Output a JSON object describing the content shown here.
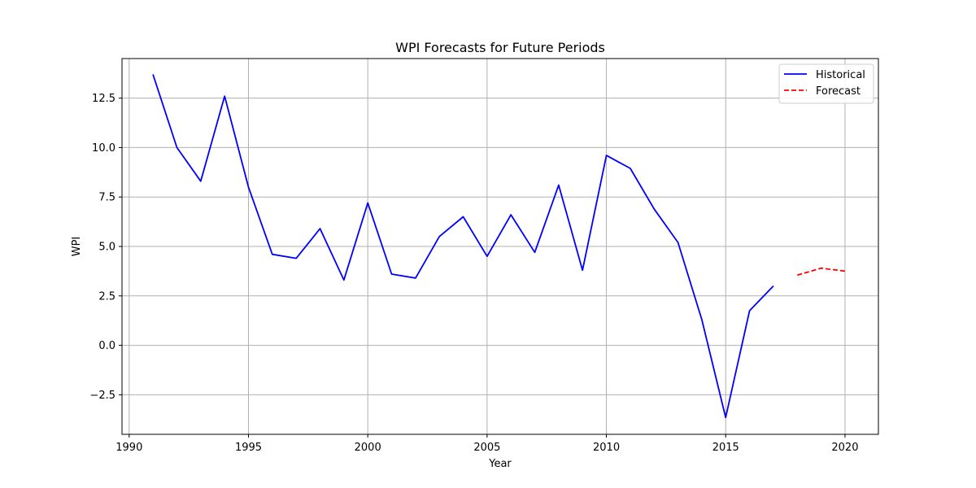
{
  "chart_data": {
    "type": "line",
    "title": "WPI Forecasts for Future Periods",
    "xlabel": "Year",
    "ylabel": "WPI",
    "xlim": [
      1989.7,
      2021.4
    ],
    "ylim": [
      -4.5,
      14.5
    ],
    "x_ticks": [
      1990,
      1995,
      2000,
      2005,
      2010,
      2015,
      2020
    ],
    "y_ticks": [
      -2.5,
      0.0,
      2.5,
      5.0,
      7.5,
      10.0,
      12.5
    ],
    "y_tick_labels": [
      "−2.5",
      "0.0",
      "2.5",
      "5.0",
      "7.5",
      "10.0",
      "12.5"
    ],
    "grid": true,
    "legend_position": "top-right",
    "series": [
      {
        "name": "Historical",
        "color": "#0000ff",
        "style": "solid",
        "x": [
          1991,
          1992,
          1993,
          1994,
          1995,
          1996,
          1997,
          1998,
          1999,
          2000,
          2001,
          2002,
          2003,
          2004,
          2005,
          2006,
          2007,
          2008,
          2009,
          2010,
          2011,
          2012,
          2013,
          2014,
          2015,
          2016,
          2017
        ],
        "values": [
          13.7,
          10.0,
          8.3,
          12.6,
          8.0,
          4.6,
          4.4,
          5.9,
          3.3,
          7.2,
          3.6,
          3.4,
          5.5,
          6.5,
          4.5,
          6.6,
          4.7,
          8.1,
          3.8,
          9.6,
          8.95,
          6.9,
          5.2,
          1.3,
          -3.65,
          1.75,
          3.0
        ]
      },
      {
        "name": "Forecast",
        "color": "#ff0000",
        "style": "dashed",
        "x": [
          2018,
          2019,
          2020
        ],
        "values": [
          3.55,
          3.9,
          3.75
        ]
      }
    ]
  }
}
